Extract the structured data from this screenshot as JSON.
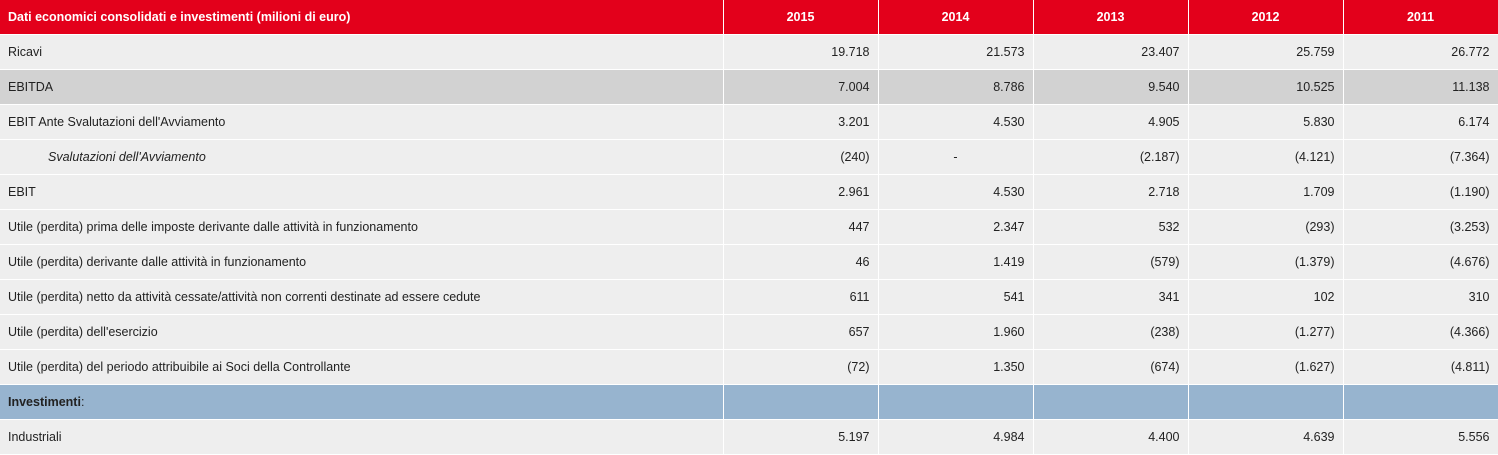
{
  "table": {
    "header": {
      "label": "Dati economici consolidati e investimenti (milioni di euro)",
      "years": [
        "2015",
        "2014",
        "2013",
        "2012",
        "2011"
      ]
    },
    "rows": [
      {
        "label": "Ricavi",
        "values": [
          "19.718",
          "21.573",
          "23.407",
          "25.759",
          "26.772"
        ]
      },
      {
        "label": "EBITDA",
        "values": [
          "7.004",
          "8.786",
          "9.540",
          "10.525",
          "11.138"
        ]
      },
      {
        "label": "EBIT Ante Svalutazioni dell'Avviamento",
        "values": [
          "3.201",
          "4.530",
          "4.905",
          "5.830",
          "6.174"
        ]
      },
      {
        "label": "Svalutazioni dell'Avviamento",
        "values": [
          "(240)",
          "-",
          "(2.187)",
          "(4.121)",
          "(7.364)"
        ]
      },
      {
        "label": "EBIT",
        "values": [
          "2.961",
          "4.530",
          "2.718",
          "1.709",
          "(1.190)"
        ]
      },
      {
        "label": "Utile (perdita)  prima delle imposte derivante dalle attività in funzionamento",
        "values": [
          "447",
          "2.347",
          "532",
          "(293)",
          "(3.253)"
        ]
      },
      {
        "label": "Utile (perdita) derivante dalle attività in funzionamento",
        "values": [
          "46",
          "1.419",
          "(579)",
          "(1.379)",
          "(4.676)"
        ]
      },
      {
        "label": "Utile (perdita) netto da attività cessate/attività non correnti destinate ad essere cedute",
        "values": [
          "611",
          "541",
          "341",
          "102",
          "310"
        ]
      },
      {
        "label": "Utile (perdita) dell'esercizio",
        "values": [
          "657",
          "1.960",
          "(238)",
          "(1.277)",
          "(4.366)"
        ]
      },
      {
        "label": "Utile (perdita) del periodo attribuibile ai Soci della Controllante",
        "values": [
          "(72)",
          "1.350",
          "(674)",
          "(1.627)",
          "(4.811)"
        ]
      }
    ],
    "section": {
      "label": "Investimenti",
      "suffix": ":"
    },
    "after_section": [
      {
        "label": "Industriali",
        "values": [
          "5.197",
          "4.984",
          "4.400",
          "4.639",
          "5.556"
        ]
      }
    ]
  },
  "colors": {
    "header_bg": "#e3001b",
    "row_bg": "#eeeeee",
    "highlight_bg": "#d2d2d2",
    "section_bg": "#97b4cf"
  }
}
